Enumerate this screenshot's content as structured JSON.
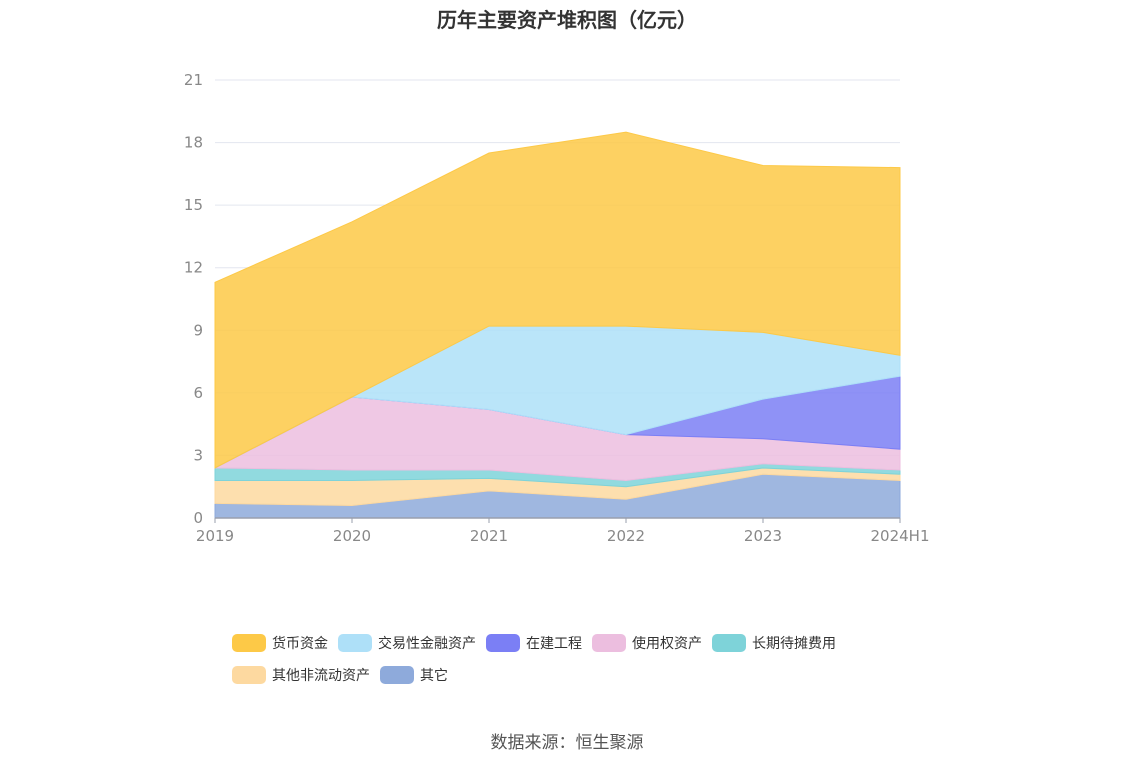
{
  "chart_data": {
    "type": "area",
    "stacked": true,
    "title": "历年主要资产堆积图（亿元）",
    "xlabel": "",
    "ylabel": "",
    "ylim": [
      0,
      21
    ],
    "yticks": [
      0,
      3,
      6,
      9,
      12,
      15,
      18,
      21
    ],
    "categories": [
      "2019",
      "2020",
      "2021",
      "2022",
      "2023",
      "2024H1"
    ],
    "grid": true,
    "legend_position": "bottom",
    "series": [
      {
        "name": "其它",
        "color": "#8eaadb",
        "values": [
          0.7,
          0.6,
          1.3,
          0.9,
          2.1,
          1.8
        ]
      },
      {
        "name": "其他非流动资产",
        "color": "#fdd9a0",
        "values": [
          1.1,
          1.2,
          0.6,
          0.6,
          0.3,
          0.3
        ]
      },
      {
        "name": "长期待摊费用",
        "color": "#7ed3d9",
        "values": [
          0.6,
          0.5,
          0.4,
          0.3,
          0.2,
          0.2
        ]
      },
      {
        "name": "使用权资产",
        "color": "#ecbedf",
        "values": [
          0.0,
          3.5,
          2.9,
          2.2,
          1.2,
          1.0
        ]
      },
      {
        "name": "在建工程",
        "color": "#7b7ff5",
        "values": [
          0.0,
          0.0,
          0.0,
          0.0,
          1.9,
          3.5
        ]
      },
      {
        "name": "交易性金融资产",
        "color": "#aee0f8",
        "values": [
          0.0,
          0.0,
          4.0,
          5.2,
          3.2,
          1.0
        ]
      },
      {
        "name": "货币资金",
        "color": "#fdc947",
        "values": [
          8.9,
          8.4,
          8.3,
          9.3,
          8.0,
          9.0
        ]
      }
    ],
    "legend_order": [
      "货币资金",
      "交易性金融资产",
      "在建工程",
      "使用权资产",
      "长期待摊费用",
      "其他非流动资产",
      "其它"
    ]
  },
  "source": "数据来源：恒生聚源"
}
